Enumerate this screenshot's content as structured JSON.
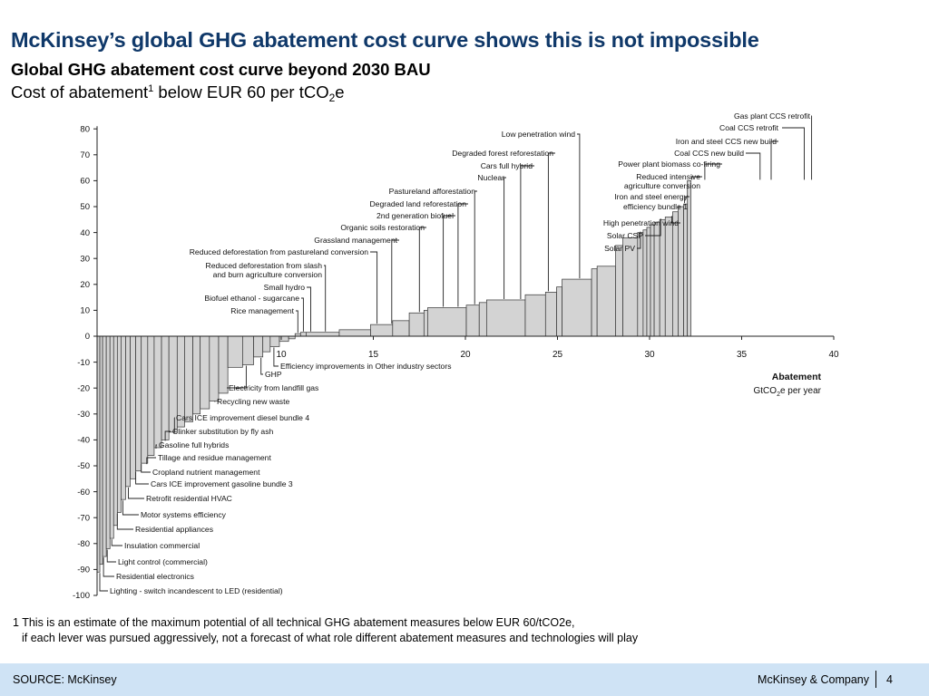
{
  "slide": {
    "title": "McKinsey’s global GHG abatement cost curve shows this is not impossible",
    "subtitle": "Global GHG abatement cost curve beyond 2030 BAU",
    "subtitle2_pre": "Cost of abatement",
    "subtitle2_sup": "1",
    "subtitle2_mid": " below EUR 60 per tCO",
    "subtitle2_sub": "2",
    "subtitle2_post": "e",
    "footnote_line1": "1 This is an estimate of the maximum potential of all technical GHG abatement measures below EUR 60/tCO2e,",
    "footnote_line2": "if each lever was pursued aggressively, not a forecast of what role different abatement measures and technologies will play",
    "source": "SOURCE: McKinsey",
    "company": "McKinsey & Company",
    "page_number": "4"
  },
  "colors": {
    "title": "#0f3869",
    "bar_fill": "#d3d3d3",
    "bar_stroke": "#333333",
    "footer_bg": "#cfe3f5"
  },
  "chart_data": {
    "type": "bar",
    "subtype": "marginal-abatement-cost-curve",
    "xlabel_line1": "Abatement",
    "xlabel_line2_pre": "GtCO",
    "xlabel_line2_sub": "2",
    "xlabel_line2_post": "e per year",
    "xlim": [
      0,
      40
    ],
    "ylim": [
      -100,
      80
    ],
    "x_ticks": [
      "10",
      "15",
      "20",
      "25",
      "30",
      "35",
      "40"
    ],
    "y_ticks": [
      "80",
      "70",
      "60",
      "50",
      "40",
      "30",
      "20",
      "10",
      "0",
      "-10",
      "-20",
      "-30",
      "-40",
      "-50",
      "-60",
      "-70",
      "-80",
      "-90",
      "-100"
    ],
    "bars": [
      {
        "w": 0.15,
        "v": -91
      },
      {
        "w": 0.15,
        "v": -88
      },
      {
        "w": 0.2,
        "v": -85
      },
      {
        "w": 0.2,
        "v": -82
      },
      {
        "w": 0.2,
        "v": -78
      },
      {
        "w": 0.2,
        "v": -73
      },
      {
        "w": 0.2,
        "v": -68
      },
      {
        "w": 0.25,
        "v": -63
      },
      {
        "w": 0.25,
        "v": -58
      },
      {
        "w": 0.3,
        "v": -55
      },
      {
        "w": 0.3,
        "v": -52
      },
      {
        "w": 0.35,
        "v": -49
      },
      {
        "w": 0.35,
        "v": -46
      },
      {
        "w": 0.4,
        "v": -43
      },
      {
        "w": 0.4,
        "v": -40
      },
      {
        "w": 0.45,
        "v": -37
      },
      {
        "w": 0.4,
        "v": -35
      },
      {
        "w": 0.45,
        "v": -33
      },
      {
        "w": 0.4,
        "v": -30
      },
      {
        "w": 0.5,
        "v": -28
      },
      {
        "w": 0.5,
        "v": -25
      },
      {
        "w": 0.5,
        "v": -22
      },
      {
        "w": 0.8,
        "v": -12
      },
      {
        "w": 0.6,
        "v": -11
      },
      {
        "w": 0.5,
        "v": -8
      },
      {
        "w": 0.4,
        "v": -6
      },
      {
        "w": 0.5,
        "v": -4
      },
      {
        "w": 0.5,
        "v": -2
      },
      {
        "w": 0.35,
        "v": -1
      },
      {
        "w": 0.3,
        "v": 1
      },
      {
        "w": 0.3,
        "v": 1.5
      },
      {
        "w": 1.8,
        "v": 1.5
      },
      {
        "w": 1.7,
        "v": 2.5
      },
      {
        "w": 1.2,
        "v": 4.5
      },
      {
        "w": 0.9,
        "v": 6
      },
      {
        "w": 0.8,
        "v": 9
      },
      {
        "w": 0.2,
        "v": 10
      },
      {
        "w": 2.1,
        "v": 11
      },
      {
        "w": 0.7,
        "v": 12
      },
      {
        "w": 0.4,
        "v": 13
      },
      {
        "w": 2.1,
        "v": 14
      },
      {
        "w": 1.1,
        "v": 16
      },
      {
        "w": 0.6,
        "v": 17
      },
      {
        "w": 0.3,
        "v": 19
      },
      {
        "w": 1.6,
        "v": 22
      },
      {
        "w": 0.3,
        "v": 26
      },
      {
        "w": 1.0,
        "v": 27
      },
      {
        "w": 0.4,
        "v": 35
      },
      {
        "w": 0.8,
        "v": 38
      },
      {
        "w": 0.3,
        "v": 40
      },
      {
        "w": 0.2,
        "v": 41
      },
      {
        "w": 0.2,
        "v": 42
      },
      {
        "w": 0.2,
        "v": 43
      },
      {
        "w": 0.3,
        "v": 44
      },
      {
        "w": 0.3,
        "v": 45
      },
      {
        "w": 0.4,
        "v": 46
      },
      {
        "w": 0.3,
        "v": 48
      },
      {
        "w": 0.3,
        "v": 50
      },
      {
        "w": 0.2,
        "v": 51
      },
      {
        "w": 0.2,
        "v": 60
      }
    ],
    "upper_annotations": [
      {
        "text": "Gas plant CCS retrofit",
        "x": 38.8
      },
      {
        "text": "Coal CCS retrofit",
        "x": 38.4
      },
      {
        "text": "Iron and steel CCS new build",
        "x": 36.6
      },
      {
        "text": "Coal CCS new build",
        "x": 36.0
      },
      {
        "text": "Power plant biomass co-firing",
        "x": 33.0
      },
      {
        "text": "Reduced intensive",
        "x": 32.3
      },
      {
        "text": "agriculture conversion",
        "x": null
      },
      {
        "text": "Iron and steel energy",
        "x": 31.9
      },
      {
        "text": "efficiency bundle 1",
        "x": null
      },
      {
        "text": "High penetration wind",
        "x": 31.2
      },
      {
        "text": "Solar CSP",
        "x": 30.6
      },
      {
        "text": "Solar PV",
        "x": 29.5
      },
      {
        "text": "Low penetration wind",
        "x": 26.2
      },
      {
        "text": "Degraded forest reforestation",
        "x": 24.5
      },
      {
        "text": "Cars full hybrid",
        "x": 23.0
      },
      {
        "text": "Nuclear",
        "x": 22.1
      },
      {
        "text": "Pastureland afforestation",
        "x": 20.5
      },
      {
        "text": "Degraded land reforestation",
        "x": 19.6
      },
      {
        "text": "2nd generation biofuel",
        "x": 18.8
      },
      {
        "text": "Organic soils restoration",
        "x": 17.5
      },
      {
        "text": "Grassland management",
        "x": 16.0
      },
      {
        "text": "Reduced deforestation from pastureland conversion",
        "x": 15.2
      },
      {
        "text": "Reduced deforestation from slash",
        "x": 12.4
      },
      {
        "text": "and burn agriculture conversion",
        "x": null
      },
      {
        "text": "Small hydro",
        "x": 11.6
      },
      {
        "text": "Biofuel ethanol - sugarcane",
        "x": 11.2
      },
      {
        "text": "Rice management",
        "x": 10.9
      }
    ],
    "lower_annotations": [
      {
        "text": "Efficiency improvements in Other industry sectors",
        "x": 9.6
      },
      {
        "text": "GHP",
        "x": 8.9
      },
      {
        "text": "Electricity from landfill gas",
        "x": 8.1
      },
      {
        "text": "Recycling new waste",
        "x": 6.4
      },
      {
        "text": "Cars ICE improvement diesel bundle 4",
        "x": 4.2
      },
      {
        "text": "Clinker substitution by fly ash",
        "x": 3.7
      },
      {
        "text": "Gasoline full hybrids",
        "x": 3.2
      },
      {
        "text": "Tillage and residue management",
        "x": 2.7
      },
      {
        "text": "Cropland nutrient management",
        "x": 2.4
      },
      {
        "text": "Cars ICE improvement gasoline bundle 3",
        "x": 2.1
      },
      {
        "text": "Retrofit residential HVAC",
        "x": 1.7
      },
      {
        "text": "Motor systems efficiency",
        "x": 1.4
      },
      {
        "text": "Residential appliances",
        "x": 1.1
      },
      {
        "text": "Insulation commercial",
        "x": 0.8
      },
      {
        "text": "Light control (commercial)",
        "x": 0.55
      },
      {
        "text": "Residential electronics",
        "x": 0.35
      },
      {
        "text": "Lighting - switch incandescent to LED (residential)",
        "x": 0.15
      }
    ]
  }
}
